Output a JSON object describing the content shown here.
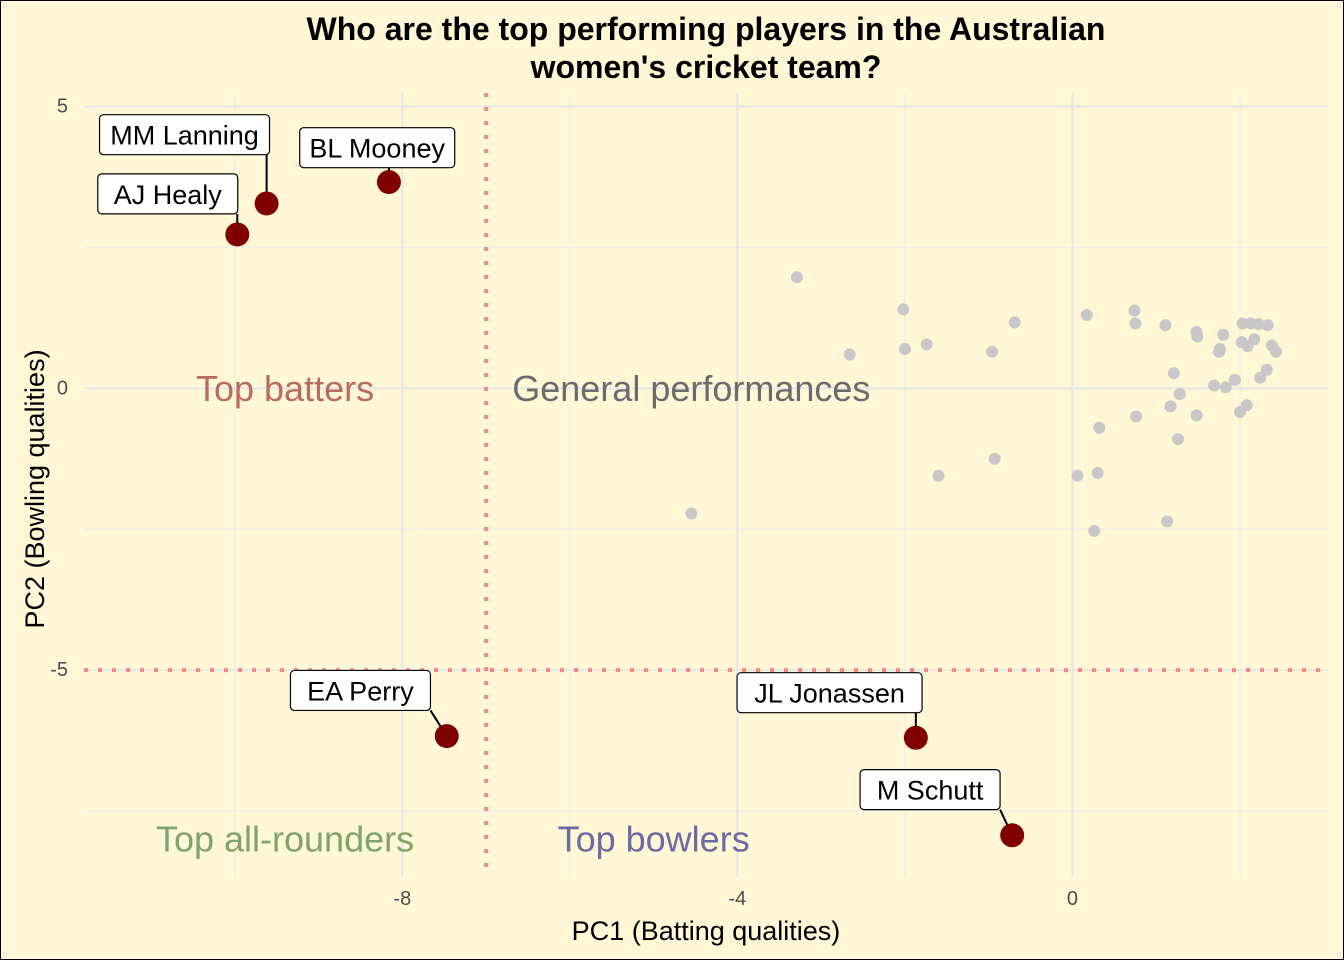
{
  "chart_data": {
    "type": "scatter",
    "title": [
      "Who are the top performing players in the Australian",
      "women's cricket team?"
    ],
    "xlabel": "PC1 (Batting qualities)",
    "ylabel": "PC2 (Bowling qualities)",
    "xlim": [
      -11.8,
      3.05
    ],
    "ylim": [
      -8.67,
      5.24
    ],
    "x_ticks": [
      -8,
      -4,
      0
    ],
    "y_ticks": [
      5,
      0,
      -5
    ],
    "x_grid_major": [
      -8,
      -4,
      0
    ],
    "x_grid_minor": [
      -10,
      -6,
      -2,
      2
    ],
    "y_grid_major": [
      5,
      0,
      -5
    ],
    "y_grid_minor": [
      2.5,
      -2.5,
      -7.5
    ],
    "grid": true,
    "vline": -7,
    "hline": -5,
    "reference_line_color": "#F8766D",
    "highlight_color": "#800000",
    "other_point_color": "#C8C8C8",
    "background_color": "#FFF7D6",
    "regions": [
      {
        "text": "Top batters",
        "x": -9.4,
        "y": 0,
        "color": "#B86B5F"
      },
      {
        "text": "General performances",
        "x": -4.55,
        "y": 0,
        "color": "#6B6B6B"
      },
      {
        "text": "Top all-rounders",
        "x": -9.4,
        "y": -8.0,
        "color": "#7EA36B"
      },
      {
        "text": "Top bowlers",
        "x": -5.0,
        "y": -8.0,
        "color": "#6B6BA3"
      }
    ],
    "highlighted": [
      {
        "name": "MM Lanning",
        "x": -9.62,
        "y": 3.28,
        "label_x": -10.6,
        "label_y": 4.5
      },
      {
        "name": "AJ Healy",
        "x": -9.97,
        "y": 2.73,
        "label_x": -10.8,
        "label_y": 3.45
      },
      {
        "name": "BL Mooney",
        "x": -8.16,
        "y": 3.66,
        "label_x": -8.3,
        "label_y": 4.27
      },
      {
        "name": "EA Perry",
        "x": -7.47,
        "y": -6.17,
        "label_x": -8.5,
        "label_y": -5.36
      },
      {
        "name": "JL Jonassen",
        "x": -1.87,
        "y": -6.2,
        "label_x": -2.9,
        "label_y": -5.4
      },
      {
        "name": "M Schutt",
        "x": -0.72,
        "y": -7.93,
        "label_x": -1.7,
        "label_y": -7.12
      }
    ],
    "others": [
      {
        "x": -3.29,
        "y": 1.97
      },
      {
        "x": -4.55,
        "y": -2.22
      },
      {
        "x": -2.66,
        "y": 0.6
      },
      {
        "x": -2.02,
        "y": 1.4
      },
      {
        "x": -2.0,
        "y": 0.7
      },
      {
        "x": -1.74,
        "y": 0.78
      },
      {
        "x": -1.6,
        "y": -1.55
      },
      {
        "x": -0.96,
        "y": 0.65
      },
      {
        "x": -0.93,
        "y": -1.25
      },
      {
        "x": -0.69,
        "y": 1.17
      },
      {
        "x": 0.06,
        "y": -1.55
      },
      {
        "x": 0.17,
        "y": 1.3
      },
      {
        "x": 0.26,
        "y": -2.53
      },
      {
        "x": 0.3,
        "y": -1.5
      },
      {
        "x": 0.32,
        "y": -0.7
      },
      {
        "x": 0.74,
        "y": 1.38
      },
      {
        "x": 0.75,
        "y": 1.15
      },
      {
        "x": 0.76,
        "y": -0.5
      },
      {
        "x": 1.11,
        "y": 1.12
      },
      {
        "x": 1.13,
        "y": -2.36
      },
      {
        "x": 1.17,
        "y": -0.32
      },
      {
        "x": 1.21,
        "y": 0.27
      },
      {
        "x": 1.26,
        "y": -0.9
      },
      {
        "x": 1.28,
        "y": -0.1
      },
      {
        "x": 1.48,
        "y": -0.48
      },
      {
        "x": 1.48,
        "y": 1.0
      },
      {
        "x": 1.49,
        "y": 0.92
      },
      {
        "x": 1.69,
        "y": 0.05
      },
      {
        "x": 1.75,
        "y": 0.65
      },
      {
        "x": 1.76,
        "y": 0.7
      },
      {
        "x": 1.8,
        "y": 0.95
      },
      {
        "x": 1.83,
        "y": 0.02
      },
      {
        "x": 1.94,
        "y": 0.15
      },
      {
        "x": 2.0,
        "y": -0.42
      },
      {
        "x": 2.02,
        "y": 0.82
      },
      {
        "x": 2.03,
        "y": 1.15
      },
      {
        "x": 2.08,
        "y": -0.3
      },
      {
        "x": 2.09,
        "y": 0.75
      },
      {
        "x": 2.13,
        "y": 1.15
      },
      {
        "x": 2.17,
        "y": 0.87
      },
      {
        "x": 2.22,
        "y": 1.14
      },
      {
        "x": 2.24,
        "y": 0.19
      },
      {
        "x": 2.32,
        "y": 0.33
      },
      {
        "x": 2.33,
        "y": 1.12
      },
      {
        "x": 2.38,
        "y": 0.76
      },
      {
        "x": 2.43,
        "y": 0.65
      }
    ]
  }
}
